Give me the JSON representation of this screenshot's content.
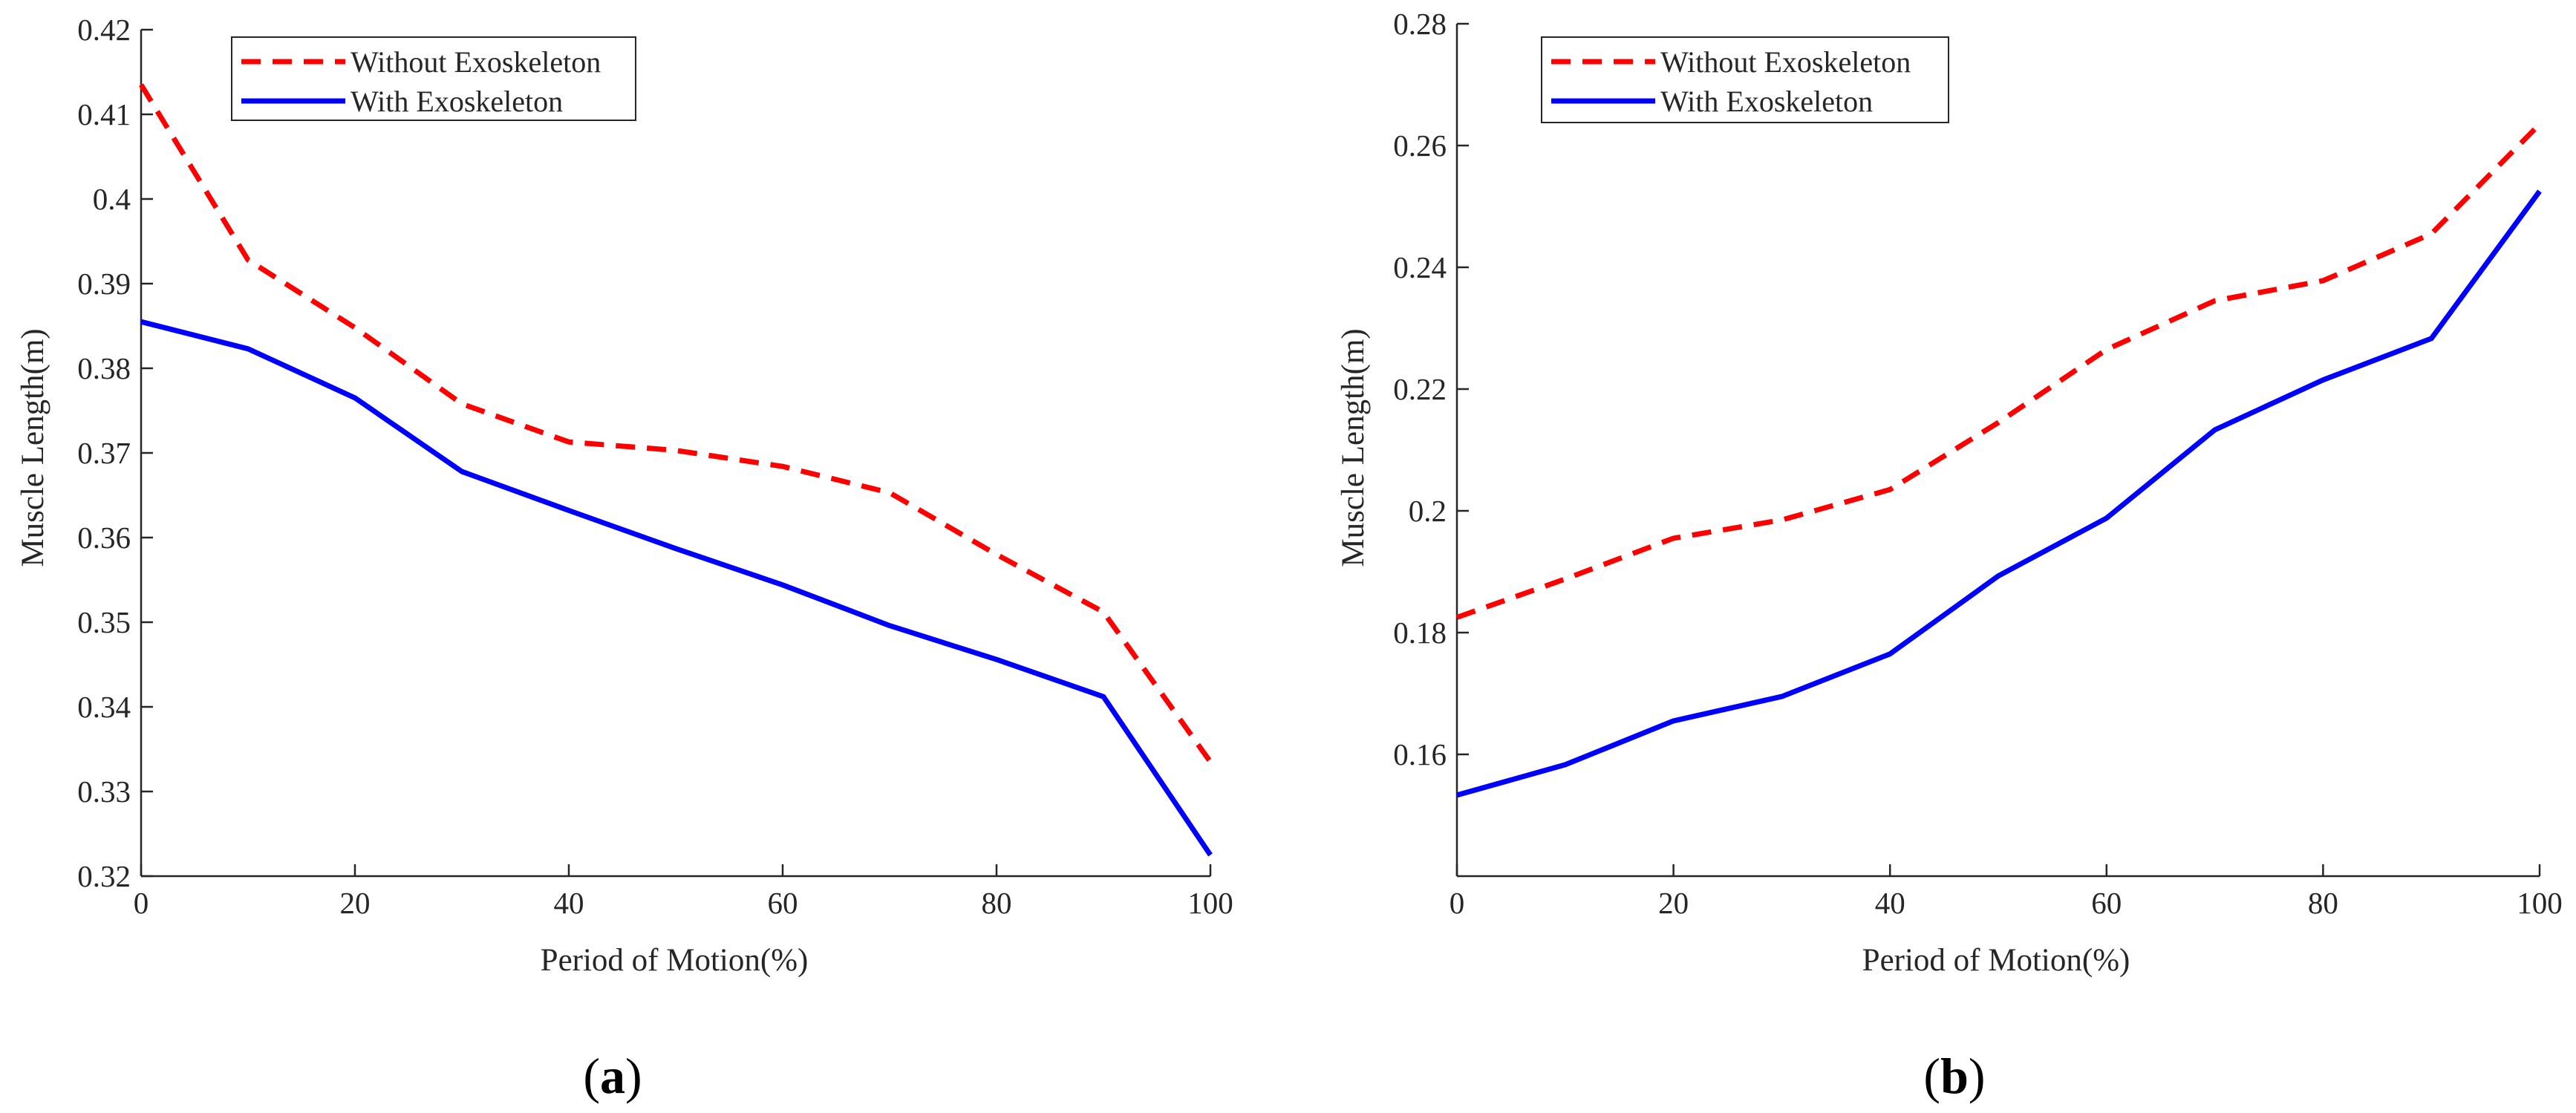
{
  "chart_data": [
    {
      "type": "line",
      "panel_label": "a",
      "xlabel": "Period of Motion(%)",
      "ylabel": "Muscle Length(m)",
      "xlim": [
        0,
        100
      ],
      "ylim": [
        0.32,
        0.42
      ],
      "xticks": [
        0,
        20,
        40,
        60,
        80,
        100
      ],
      "yticks": [
        0.32,
        0.33,
        0.34,
        0.35,
        0.36,
        0.37,
        0.38,
        0.39,
        0.4,
        0.41,
        0.42
      ],
      "ytick_labels": [
        "0.32",
        "0.33",
        "0.34",
        "0.35",
        "0.36",
        "0.37",
        "0.38",
        "0.39",
        "0.4",
        "0.41",
        "0.42"
      ],
      "legend_position": "top-center",
      "x": [
        0,
        10,
        20,
        30,
        40,
        50,
        60,
        70,
        80,
        90,
        100
      ],
      "series": [
        {
          "name": "Without Exoskeleton",
          "color": "#ff0000",
          "style": "dashed",
          "values": [
            0.4135,
            0.3928,
            0.3848,
            0.3758,
            0.3713,
            0.3703,
            0.3684,
            0.3653,
            0.358,
            0.3512,
            0.3335
          ]
        },
        {
          "name": "With Exoskeleton",
          "color": "#0000ff",
          "style": "solid",
          "values": [
            0.3855,
            0.3823,
            0.3765,
            0.3678,
            0.3632,
            0.3587,
            0.3544,
            0.3496,
            0.3456,
            0.3412,
            0.3225
          ]
        }
      ]
    },
    {
      "type": "line",
      "panel_label": "b",
      "xlabel": "Period of Motion(%)",
      "ylabel": "Muscle Length(m)",
      "xlim": [
        0,
        100
      ],
      "ylim": [
        0.14,
        0.28
      ],
      "xticks": [
        0,
        20,
        40,
        60,
        80,
        100
      ],
      "yticks": [
        0.16,
        0.18,
        0.2,
        0.22,
        0.24,
        0.26,
        0.28
      ],
      "ytick_labels": [
        "0.16",
        "0.18",
        "0.2",
        "0.22",
        "0.24",
        "0.26",
        "0.28"
      ],
      "legend_position": "top-left",
      "x": [
        0,
        10,
        20,
        30,
        40,
        50,
        60,
        70,
        80,
        90,
        100
      ],
      "series": [
        {
          "name": "Without Exoskeleton",
          "color": "#ff0000",
          "style": "dashed",
          "values": [
            0.1825,
            0.1888,
            0.1955,
            0.1985,
            0.2035,
            0.2145,
            0.2265,
            0.2345,
            0.2378,
            0.2455,
            0.2635
          ]
        },
        {
          "name": "With Exoskeleton",
          "color": "#0000ff",
          "style": "solid",
          "values": [
            0.1533,
            0.1583,
            0.1655,
            0.1695,
            0.1765,
            0.1893,
            0.1988,
            0.2133,
            0.2215,
            0.2283,
            0.2525
          ]
        }
      ]
    }
  ]
}
